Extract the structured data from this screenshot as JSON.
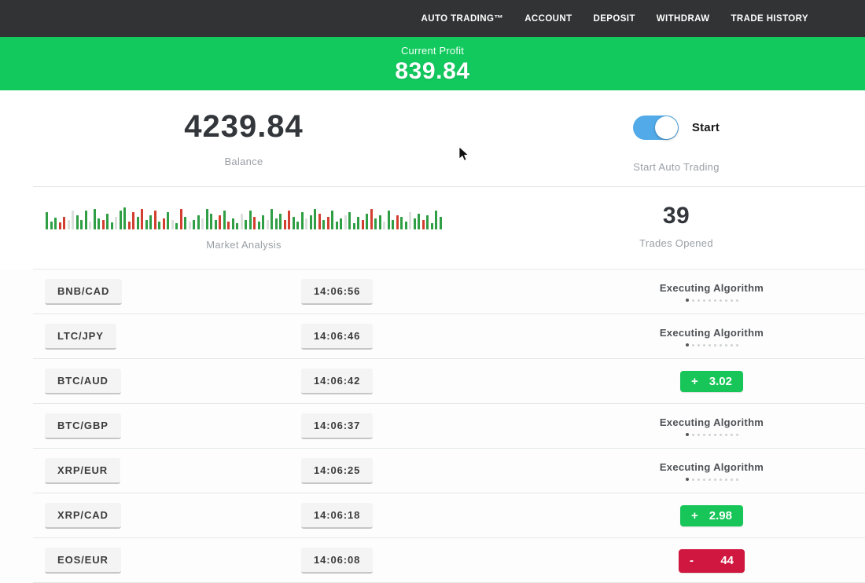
{
  "nav": {
    "items": [
      {
        "label": "AUTO TRADING™"
      },
      {
        "label": "ACCOUNT"
      },
      {
        "label": "DEPOSIT"
      },
      {
        "label": "WITHDRAW"
      },
      {
        "label": "TRADE HISTORY"
      }
    ]
  },
  "profit_banner": {
    "label": "Current Profit",
    "value": "839.84"
  },
  "account": {
    "balance_value": "4239.84",
    "balance_label": "Balance",
    "trades_opened_value": "39",
    "trades_opened_label": "Trades Opened"
  },
  "auto_trading": {
    "toggle_label": "Start",
    "caption": "Start Auto Trading",
    "state": "on"
  },
  "market": {
    "label": "Market Analysis"
  },
  "chart_data": {
    "type": "bar",
    "title": "Market Analysis",
    "ylabel": "",
    "xlabel": "",
    "note": "decorative mini market-activity bar strip; heights in px (max 30), colors g=green up, r=red down, l=light idle",
    "bars": [
      [
        22,
        "g"
      ],
      [
        10,
        "g"
      ],
      [
        15,
        "g"
      ],
      [
        9,
        "r"
      ],
      [
        16,
        "r"
      ],
      [
        12,
        "l"
      ],
      [
        24,
        "l"
      ],
      [
        18,
        "g"
      ],
      [
        12,
        "g"
      ],
      [
        24,
        "g"
      ],
      [
        10,
        "l"
      ],
      [
        26,
        "g"
      ],
      [
        14,
        "g"
      ],
      [
        12,
        "r"
      ],
      [
        20,
        "g"
      ],
      [
        9,
        "g"
      ],
      [
        16,
        "l"
      ],
      [
        24,
        "g"
      ],
      [
        28,
        "g"
      ],
      [
        10,
        "r"
      ],
      [
        22,
        "r"
      ],
      [
        16,
        "g"
      ],
      [
        26,
        "r"
      ],
      [
        12,
        "g"
      ],
      [
        18,
        "g"
      ],
      [
        24,
        "r"
      ],
      [
        10,
        "g"
      ],
      [
        14,
        "r"
      ],
      [
        22,
        "g"
      ],
      [
        12,
        "l"
      ],
      [
        8,
        "g"
      ],
      [
        26,
        "r"
      ],
      [
        16,
        "g"
      ],
      [
        10,
        "l"
      ],
      [
        12,
        "g"
      ],
      [
        18,
        "g"
      ],
      [
        14,
        "l"
      ],
      [
        26,
        "g"
      ],
      [
        20,
        "g"
      ],
      [
        12,
        "g"
      ],
      [
        18,
        "r"
      ],
      [
        24,
        "g"
      ],
      [
        10,
        "r"
      ],
      [
        14,
        "g"
      ],
      [
        8,
        "g"
      ],
      [
        20,
        "l"
      ],
      [
        12,
        "g"
      ],
      [
        24,
        "g"
      ],
      [
        16,
        "r"
      ],
      [
        10,
        "g"
      ],
      [
        18,
        "g"
      ],
      [
        12,
        "l"
      ],
      [
        26,
        "g"
      ],
      [
        14,
        "g"
      ],
      [
        20,
        "g"
      ],
      [
        12,
        "r"
      ],
      [
        24,
        "r"
      ],
      [
        16,
        "g"
      ],
      [
        10,
        "g"
      ],
      [
        22,
        "g"
      ],
      [
        14,
        "l"
      ],
      [
        18,
        "g"
      ],
      [
        26,
        "g"
      ],
      [
        20,
        "r"
      ],
      [
        12,
        "g"
      ],
      [
        16,
        "r"
      ],
      [
        24,
        "g"
      ],
      [
        10,
        "g"
      ],
      [
        14,
        "g"
      ],
      [
        18,
        "l"
      ],
      [
        22,
        "g"
      ],
      [
        8,
        "g"
      ],
      [
        16,
        "g"
      ],
      [
        12,
        "r"
      ],
      [
        20,
        "g"
      ],
      [
        26,
        "r"
      ],
      [
        14,
        "g"
      ],
      [
        18,
        "g"
      ],
      [
        10,
        "l"
      ],
      [
        24,
        "g"
      ],
      [
        12,
        "g"
      ],
      [
        18,
        "r"
      ],
      [
        16,
        "g"
      ],
      [
        10,
        "g"
      ],
      [
        22,
        "l"
      ],
      [
        14,
        "g"
      ],
      [
        20,
        "g"
      ],
      [
        12,
        "r"
      ],
      [
        18,
        "g"
      ],
      [
        8,
        "g"
      ],
      [
        24,
        "g"
      ],
      [
        16,
        "g"
      ]
    ]
  },
  "trades": [
    {
      "pair": "BNB/CAD",
      "time": "14:06:56",
      "status": "executing",
      "status_label": "Executing Algorithm"
    },
    {
      "pair": "LTC/JPY",
      "time": "14:06:46",
      "status": "executing",
      "status_label": "Executing Algorithm"
    },
    {
      "pair": "BTC/AUD",
      "time": "14:06:42",
      "status": "profit",
      "sign": "+",
      "value": "3.02"
    },
    {
      "pair": "BTC/GBP",
      "time": "14:06:37",
      "status": "executing",
      "status_label": "Executing Algorithm"
    },
    {
      "pair": "XRP/EUR",
      "time": "14:06:25",
      "status": "executing",
      "status_label": "Executing Algorithm"
    },
    {
      "pair": "XRP/CAD",
      "time": "14:06:18",
      "status": "profit",
      "sign": "+",
      "value": "2.98"
    },
    {
      "pair": "EOS/EUR",
      "time": "14:06:08",
      "status": "loss",
      "sign": "-",
      "value": "44"
    }
  ],
  "ui": {
    "progress_dots_count": 10
  },
  "colors": {
    "nav_bg": "#323334",
    "banner_green": "#12c95e",
    "badge_green": "#17c558",
    "badge_red": "#d0173f",
    "toggle_blue": "#52aae8",
    "bar_green": "#2f9e44",
    "bar_red": "#d23f31",
    "bar_light": "#dce0dc"
  }
}
